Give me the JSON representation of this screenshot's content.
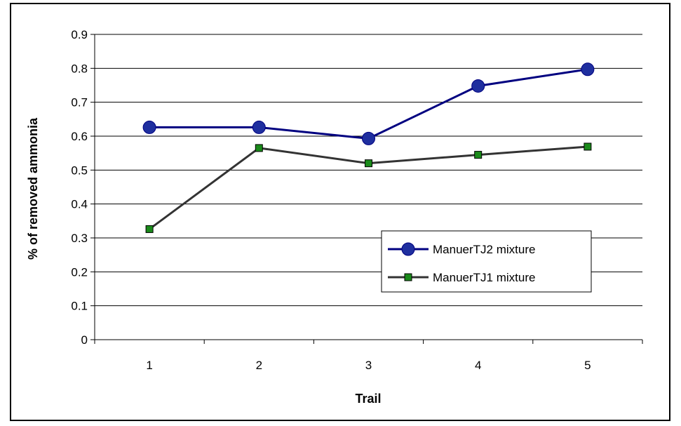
{
  "chart_data": {
    "type": "line",
    "xlabel": "Trail",
    "ylabel": "% of  removed ammonia",
    "categories": [
      "1",
      "2",
      "3",
      "4",
      "5"
    ],
    "ylim": [
      0,
      0.9
    ],
    "yticks": [
      "0",
      "0.1",
      "0.2",
      "0.3",
      "0.4",
      "0.5",
      "0.6",
      "0.7",
      "0.8",
      "0.9"
    ],
    "grid": true,
    "legend_position": "right",
    "series": [
      {
        "name": "ManuerTJ2 mixture",
        "values": [
          0.626,
          0.626,
          0.593,
          0.748,
          0.797
        ],
        "color": "#000080",
        "marker": "circle",
        "marker_color": "#1f2f9f"
      },
      {
        "name": "ManuerTJ1 mixture",
        "values": [
          0.326,
          0.565,
          0.52,
          0.545,
          0.569
        ],
        "color": "#333333",
        "marker": "square",
        "marker_color": "#1a8a1a"
      }
    ]
  }
}
